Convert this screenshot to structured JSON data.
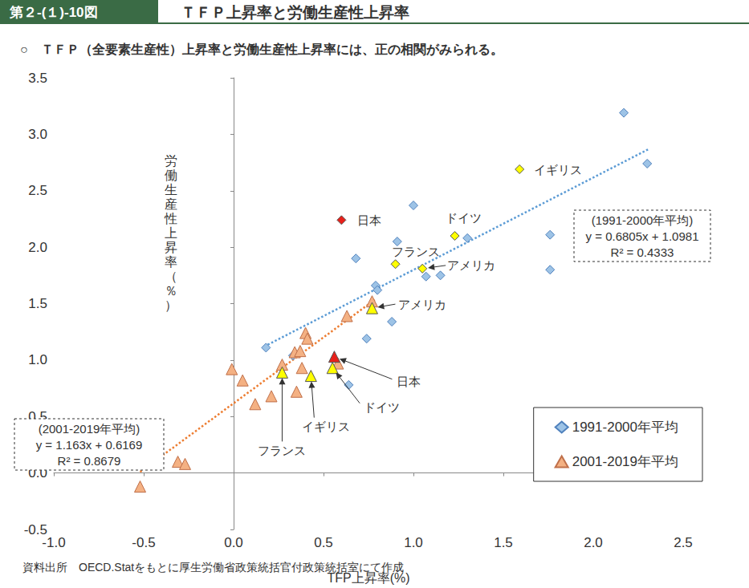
{
  "chart_data": {
    "type": "scatter",
    "figure_number": "第２-(１)-10図",
    "title": "ＴＦＰ上昇率と労働生産性上昇率",
    "subtitle": "○　ＴＦＰ（全要素生産性）上昇率と労働生産性上昇率には、正の相関がみられる。",
    "x_label": "TFP上昇率(%)",
    "y_label": "労働生産性上昇率（％）",
    "source": "資料出所　OECD.Statをもとに厚生労働省政策統括官付政策統括室にて作成",
    "xlim": [
      -1.0,
      2.5
    ],
    "xticks": [
      {
        "value": -1.0,
        "label": "-1.0"
      },
      -0.5,
      {
        "value": 0,
        "label": "0.0"
      },
      0.5,
      {
        "value": 1.0,
        "label": "1.0"
      },
      1.5,
      {
        "value": 2.0,
        "label": "2.0"
      },
      2.5
    ],
    "ylim": [
      -0.5,
      3.5
    ],
    "yticks": [
      -0.5,
      {
        "value": 0,
        "label": "0.0"
      },
      0.5,
      {
        "value": 1.0,
        "label": "1.0"
      },
      1.5,
      {
        "value": 2.0,
        "label": "2.0"
      },
      2.5,
      {
        "value": 3.0,
        "label": "3.0"
      },
      3.5
    ],
    "grid": false,
    "legend": "bottom right",
    "series": [
      {
        "name": "1991-2000年平均",
        "marker": "diamond",
        "color": "#9dc3e6",
        "x": [
          0.18,
          0.33,
          0.64,
          0.68,
          0.74,
          0.79,
          0.8,
          0.88,
          0.91,
          1.0,
          1.07,
          1.15,
          1.3,
          1.76,
          1.76,
          2.17,
          2.3
        ],
        "y": [
          1.11,
          1.04,
          0.78,
          1.9,
          1.19,
          1.66,
          1.62,
          1.34,
          2.05,
          2.37,
          1.74,
          1.75,
          2.08,
          2.11,
          1.8,
          3.19,
          2.74
        ],
        "highlights": [
          {
            "label": "日本",
            "x": 0.6,
            "y": 2.24,
            "color": "#e8201a"
          },
          {
            "label": "イギリス",
            "x": 1.59,
            "y": 2.69,
            "color": "#ffff00"
          },
          {
            "label": "ドイツ",
            "x": 1.23,
            "y": 2.1,
            "color": "#ffff00"
          },
          {
            "label": "フランス",
            "x": 0.9,
            "y": 1.85,
            "color": "#ffff00"
          },
          {
            "label": "アメリカ",
            "x": 1.05,
            "y": 1.81,
            "color": "#ffff00"
          }
        ],
        "trendline": {
          "x": [
            0.17,
            2.31
          ],
          "y": [
            1.12,
            2.87
          ],
          "color": "#5b9bd5",
          "line_style": "dotted",
          "text": [
            "(1991-2000年平均)",
            "y = 0.6805x + 1.0981",
            "R² = 0.4333"
          ]
        }
      },
      {
        "name": "2001-2019年平均",
        "marker": "triangle",
        "color": "#f4b183",
        "x": [
          -0.52,
          -0.31,
          -0.27,
          -0.01,
          0.05,
          0.12,
          0.21,
          0.27,
          0.34,
          0.35,
          0.37,
          0.38,
          0.4,
          0.41,
          0.58,
          0.63,
          0.77
        ],
        "y": [
          -0.12,
          0.1,
          0.08,
          0.92,
          0.82,
          0.61,
          0.68,
          0.96,
          1.07,
          0.72,
          1.08,
          0.93,
          1.24,
          1.19,
          0.97,
          1.39,
          1.52
        ],
        "highlights": [
          {
            "label": "日本",
            "x": 0.56,
            "y": 1.03,
            "color": "#e8201a"
          },
          {
            "label": "イギリス",
            "x": 0.43,
            "y": 0.86,
            "color": "#ffff00"
          },
          {
            "label": "ドイツ",
            "x": 0.55,
            "y": 0.93,
            "color": "#ffff00"
          },
          {
            "label": "フランス",
            "x": 0.27,
            "y": 0.89,
            "color": "#ffff00"
          },
          {
            "label": "アメリカ",
            "x": 0.77,
            "y": 1.46,
            "color": "#ffff00"
          }
        ],
        "trendline": {
          "x": [
            -0.52,
            0.79
          ],
          "y": [
            0.01,
            1.54
          ],
          "color": "#ed7d31",
          "line_style": "dotted",
          "text": [
            "(2001-2019年平均)",
            "y = 1.163x + 0.6169",
            "R² = 0.8679"
          ]
        }
      }
    ]
  }
}
